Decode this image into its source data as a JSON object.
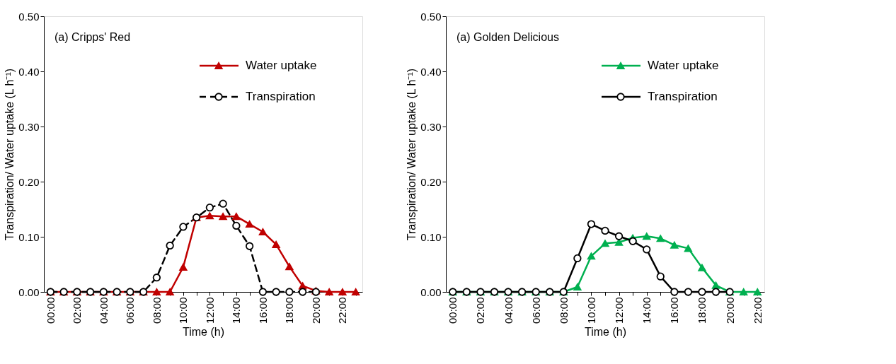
{
  "chart_data": [
    {
      "type": "line",
      "categories": [
        "00:00",
        null,
        "02:00",
        null,
        "04:00",
        null,
        "06:00",
        null,
        "08:00",
        null,
        "10:00",
        null,
        "12:00",
        null,
        "14:00",
        null,
        "16:00",
        null,
        "18:00",
        null,
        "20:00",
        null,
        "22:00",
        null
      ],
      "xlabel": "Time (h)",
      "ylabel": "Transpiration/ Water uptake (L h⁻¹)",
      "ylim": [
        0,
        0.5
      ],
      "yticks": [
        {
          "value": 0,
          "label": "0.00"
        },
        {
          "value": 0.1,
          "label": "0.10"
        },
        {
          "value": 0.2,
          "label": "0.20"
        },
        {
          "value": 0.3,
          "label": "0.30"
        },
        {
          "value": 0.4,
          "label": "0.40"
        },
        {
          "value": 0.5,
          "label": "0.50"
        }
      ],
      "annotations": [
        "(a) Cripps' Red"
      ],
      "legend": "top right",
      "grid": false,
      "series": [
        {
          "name": "Water uptake",
          "color": "#c00000",
          "marker": "triangle",
          "line_style": "solid",
          "values": [
            0,
            0,
            0,
            0,
            0,
            0,
            0,
            0,
            0,
            0,
            0.045,
            0.135,
            0.138,
            0.137,
            0.137,
            0.123,
            0.109,
            0.086,
            0.046,
            0.011,
            0.002,
            0,
            0,
            0
          ]
        },
        {
          "name": "Transpiration",
          "color": "#000000",
          "marker": "circle",
          "line_style": "dashed",
          "values": [
            0,
            0,
            0,
            0,
            0,
            0,
            0,
            0,
            0.026,
            0.084,
            0.118,
            0.135,
            0.153,
            0.16,
            0.12,
            0.083,
            0,
            0,
            0,
            0,
            0,
            null,
            null,
            null
          ]
        }
      ]
    },
    {
      "type": "line",
      "categories": [
        "00:00",
        null,
        "02:00",
        null,
        "04:00",
        null,
        "06:00",
        null,
        "08:00",
        null,
        "10:00",
        null,
        "12:00",
        null,
        "14:00",
        null,
        "16:00",
        null,
        "18:00",
        null,
        "20:00",
        null,
        "22:00"
      ],
      "xlabel": "Time (h)",
      "ylabel": "Transpiration/ Water uptake (L h⁻¹)",
      "ylim": [
        0,
        0.5
      ],
      "yticks": [
        {
          "value": 0,
          "label": "0.00"
        },
        {
          "value": 0.1,
          "label": "0.10"
        },
        {
          "value": 0.2,
          "label": "0.20"
        },
        {
          "value": 0.3,
          "label": "0.30"
        },
        {
          "value": 0.4,
          "label": "0.40"
        },
        {
          "value": 0.5,
          "label": "0.50"
        }
      ],
      "annotations": [
        "(a) Golden Delicious"
      ],
      "legend": "top right",
      "grid": false,
      "series": [
        {
          "name": "Water uptake",
          "color": "#00b050",
          "marker": "triangle",
          "line_style": "solid",
          "values": [
            0,
            0,
            0,
            0,
            0,
            0,
            0,
            0,
            0,
            0.009,
            0.065,
            0.088,
            0.09,
            0.098,
            0.101,
            0.097,
            0.085,
            0.079,
            0.044,
            0.012,
            0,
            0,
            0
          ]
        },
        {
          "name": "Transpiration",
          "color": "#000000",
          "marker": "circle",
          "line_style": "solid",
          "values": [
            0,
            0,
            0,
            0,
            0,
            0,
            0,
            0,
            0,
            0.061,
            0.123,
            0.111,
            0.101,
            0.092,
            0.077,
            0.028,
            0,
            0,
            0,
            0,
            0,
            null,
            null
          ]
        }
      ]
    }
  ]
}
